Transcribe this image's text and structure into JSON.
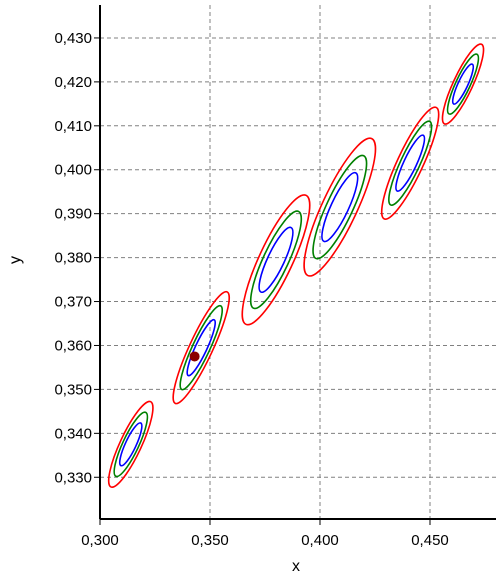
{
  "chart_data": {
    "type": "scatter",
    "title": "",
    "xlabel": "x",
    "ylabel": "y",
    "xlim": [
      0.3,
      0.48
    ],
    "ylim": [
      0.3205,
      0.4375
    ],
    "grid": true,
    "x_ticks": [
      {
        "value": 0.3,
        "label": "0,300"
      },
      {
        "value": 0.35,
        "label": "0,350"
      },
      {
        "value": 0.4,
        "label": "0,400"
      },
      {
        "value": 0.45,
        "label": "0,450"
      }
    ],
    "y_ticks": [
      {
        "value": 0.33,
        "label": "0,330"
      },
      {
        "value": 0.34,
        "label": "0,340"
      },
      {
        "value": 0.35,
        "label": "0,350"
      },
      {
        "value": 0.36,
        "label": "0,360"
      },
      {
        "value": 0.37,
        "label": "0,370"
      },
      {
        "value": 0.38,
        "label": "0,380"
      },
      {
        "value": 0.39,
        "label": "0,390"
      },
      {
        "value": 0.4,
        "label": "0,400"
      },
      {
        "value": 0.41,
        "label": "0,410"
      },
      {
        "value": 0.42,
        "label": "0,420"
      },
      {
        "value": 0.43,
        "label": "0,430"
      }
    ],
    "ellipse_centers": [
      {
        "x": 0.314,
        "y": 0.3375
      },
      {
        "x": 0.346,
        "y": 0.3595
      },
      {
        "x": 0.38,
        "y": 0.3795
      },
      {
        "x": 0.409,
        "y": 0.3915
      },
      {
        "x": 0.441,
        "y": 0.4015
      },
      {
        "x": 0.465,
        "y": 0.4195
      }
    ],
    "ellipse_sizes": [
      {
        "rx": 0.0135,
        "ry": 0.0107
      },
      {
        "rx": 0.0146,
        "ry": 0.014
      },
      {
        "rx": 0.0212,
        "ry": 0.0162
      },
      {
        "rx": 0.0221,
        "ry": 0.0172
      },
      {
        "rx": 0.0162,
        "ry": 0.014
      },
      {
        "rx": 0.0122,
        "ry": 0.01
      }
    ],
    "contour_levels": [
      {
        "scale": 0.5,
        "color": "#0000ff"
      },
      {
        "scale": 0.75,
        "color": "#008000"
      },
      {
        "scale": 1.0,
        "color": "#ff0000"
      }
    ],
    "marker": {
      "x": 0.343,
      "y": 0.3575,
      "color": "#8b0000"
    },
    "colors": {
      "grid": "#808080",
      "axis": "#000000"
    }
  }
}
